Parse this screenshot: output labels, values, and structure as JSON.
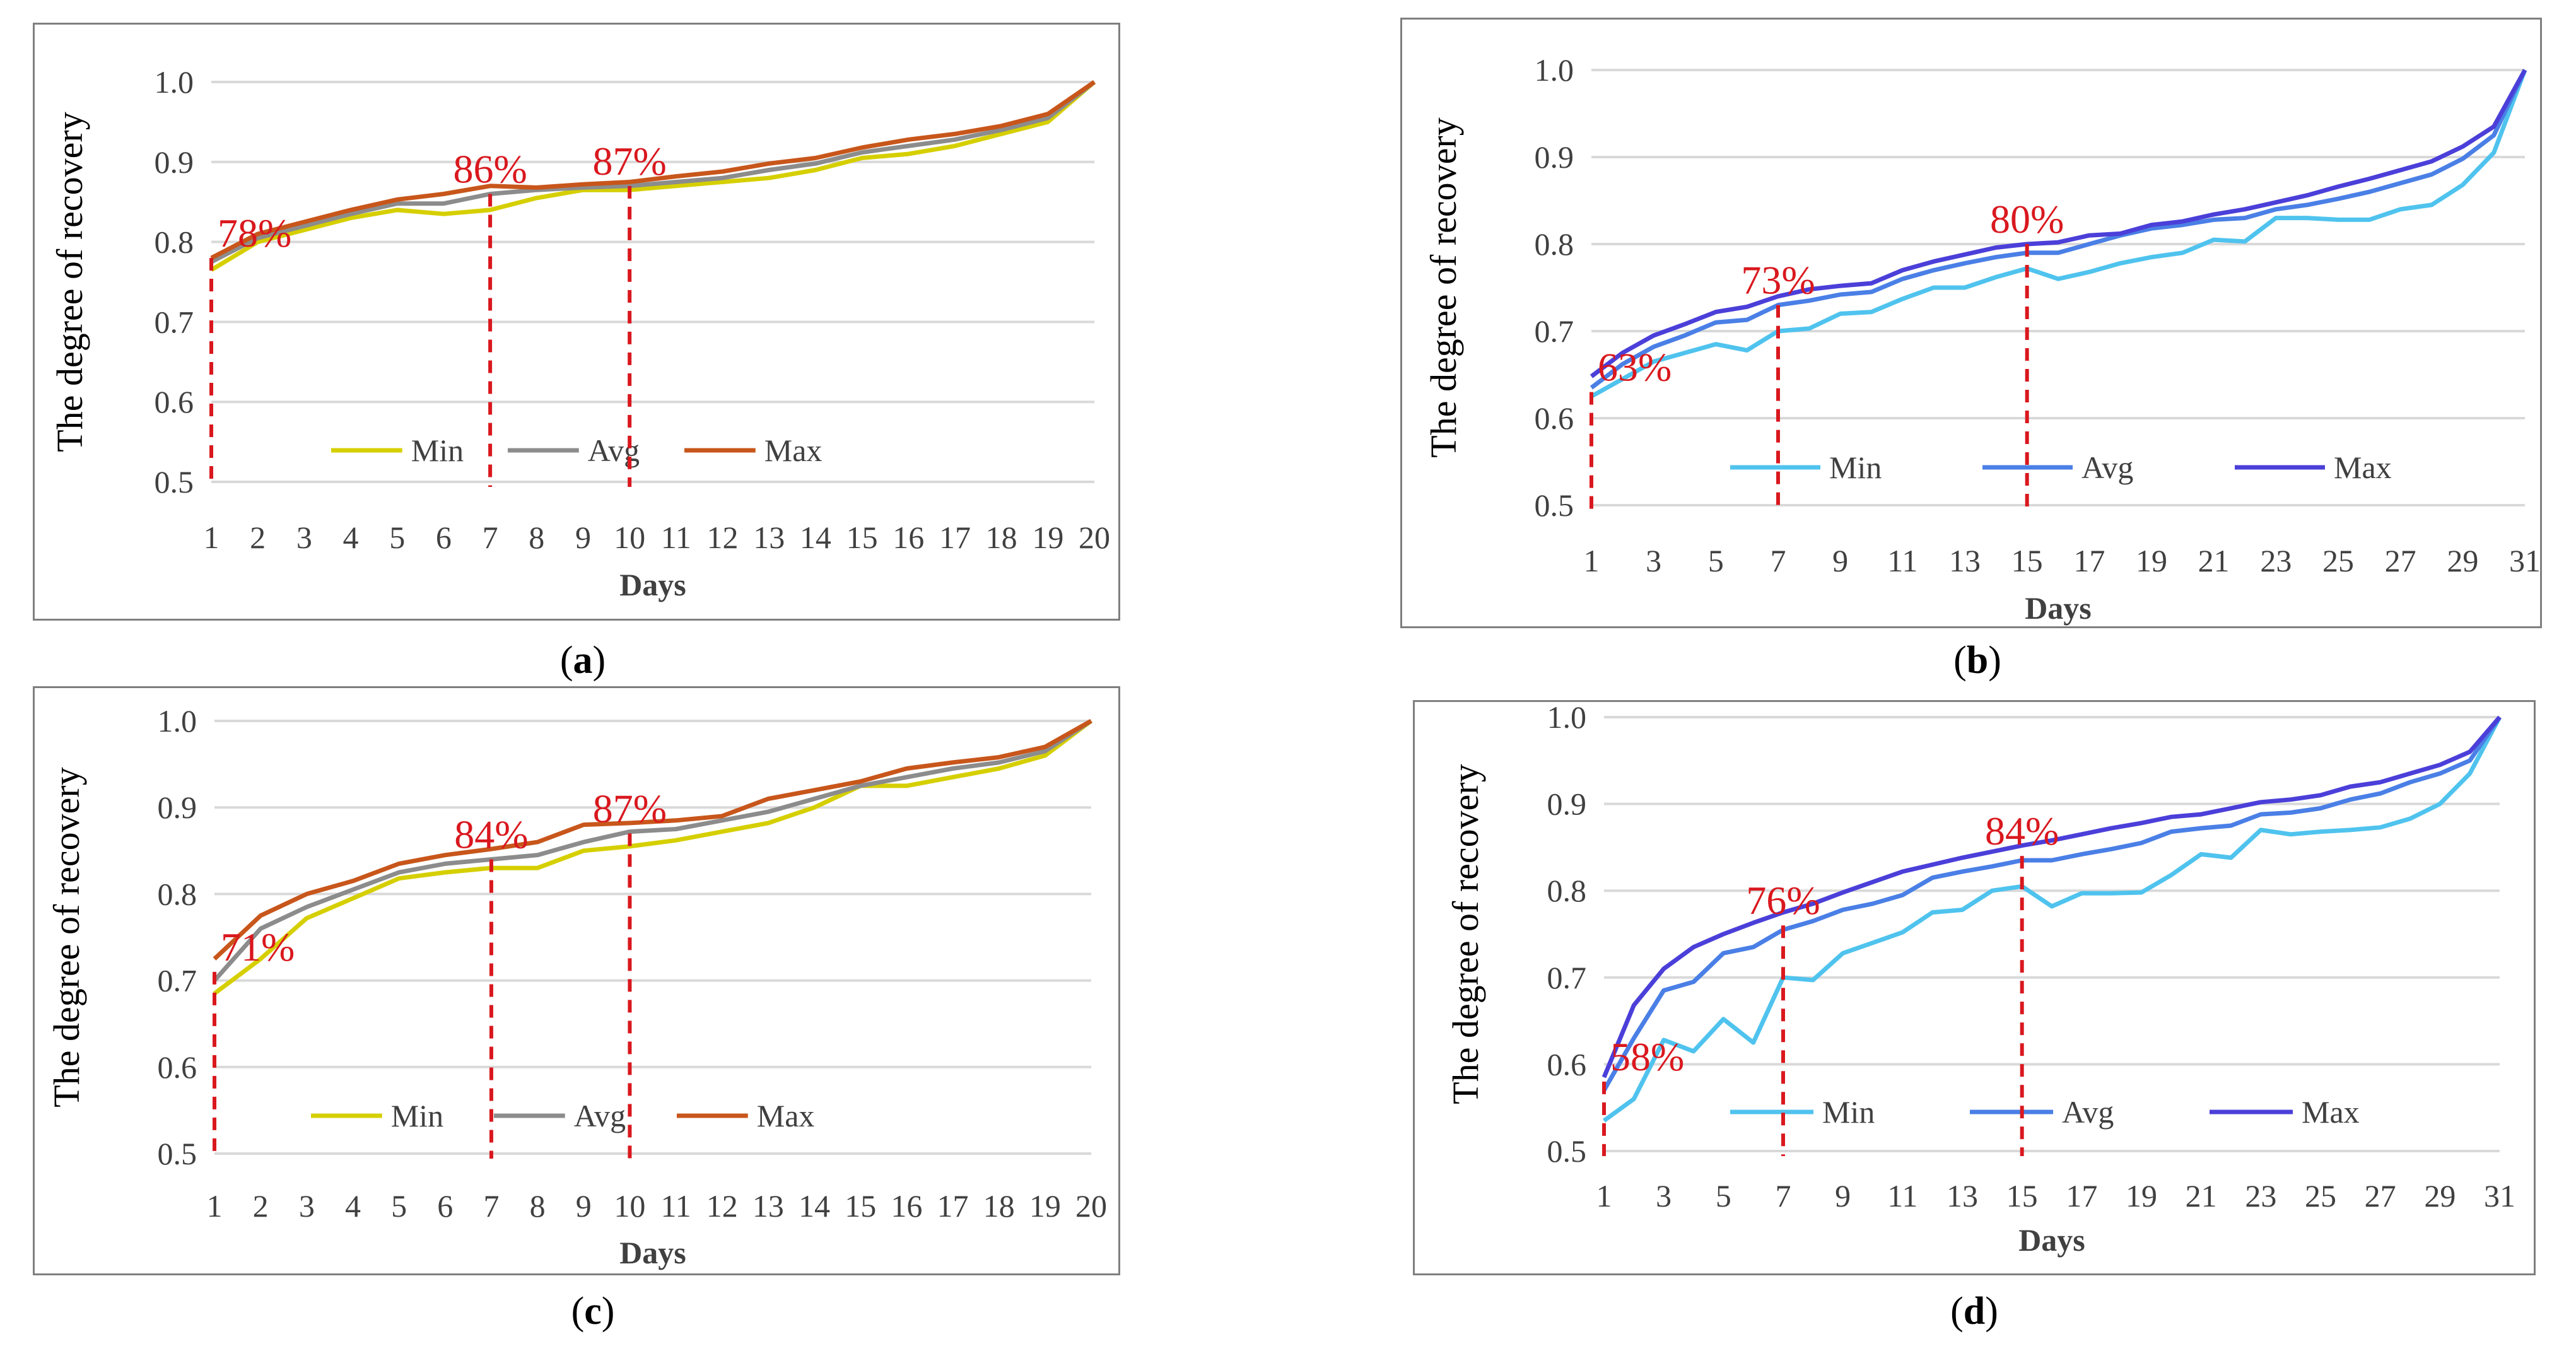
{
  "colors": {
    "annotation": "#d9181e",
    "grid": "#d9d9d9",
    "axis_text": "#404040",
    "warm": {
      "Min": "#d6cf00",
      "Avg": "#8c8c8c",
      "Max": "#c8561b"
    },
    "cool": {
      "Min": "#4fc3ee",
      "Avg": "#4a7fe6",
      "Max": "#4b3fd9"
    }
  },
  "captions": [
    {
      "open": "(",
      "letter": "a",
      "close": ")"
    },
    {
      "open": "(",
      "letter": "b",
      "close": ")"
    },
    {
      "open": "(",
      "letter": "c",
      "close": ")"
    },
    {
      "open": "(",
      "letter": "d",
      "close": ")"
    }
  ],
  "chart_data": [
    {
      "type": "line",
      "palette": "warm",
      "ylabel": "The degree of  recovery",
      "xlabel": "Days",
      "ylim": [
        0.5,
        1.0
      ],
      "yticks": [
        "0.5",
        "0.6",
        "0.7",
        "0.8",
        "0.9",
        "1.0"
      ],
      "x": [
        1,
        2,
        3,
        4,
        5,
        6,
        7,
        8,
        9,
        10,
        11,
        12,
        13,
        14,
        15,
        16,
        17,
        18,
        19,
        20
      ],
      "xtick_labels": [
        "1",
        "2",
        "3",
        "4",
        "5",
        "6",
        "7",
        "8",
        "9",
        "10",
        "11",
        "12",
        "13",
        "14",
        "15",
        "16",
        "17",
        "18",
        "19",
        "20"
      ],
      "grid": true,
      "legend_position": "bottom",
      "series": [
        {
          "name": "Min",
          "values": [
            0.765,
            0.8,
            0.815,
            0.83,
            0.84,
            0.835,
            0.84,
            0.855,
            0.865,
            0.865,
            0.87,
            0.875,
            0.88,
            0.89,
            0.905,
            0.91,
            0.92,
            0.935,
            0.95,
            1.0
          ]
        },
        {
          "name": "Avg",
          "values": [
            0.775,
            0.805,
            0.82,
            0.835,
            0.848,
            0.848,
            0.86,
            0.865,
            0.868,
            0.87,
            0.875,
            0.88,
            0.89,
            0.898,
            0.912,
            0.92,
            0.928,
            0.94,
            0.955,
            1.0
          ]
        },
        {
          "name": "Max",
          "values": [
            0.78,
            0.81,
            0.825,
            0.84,
            0.853,
            0.86,
            0.87,
            0.868,
            0.872,
            0.875,
            0.882,
            0.888,
            0.898,
            0.905,
            0.918,
            0.928,
            0.935,
            0.945,
            0.96,
            1.0
          ]
        }
      ],
      "markers": [
        {
          "x": 1,
          "y": 0.78,
          "label": "78%"
        },
        {
          "x": 7,
          "y": 0.86,
          "label": "86%"
        },
        {
          "x": 10,
          "y": 0.87,
          "label": "87%"
        }
      ]
    },
    {
      "type": "line",
      "palette": "cool",
      "ylabel": "The degree of  recovery",
      "xlabel": "Days",
      "ylim": [
        0.5,
        1.0
      ],
      "yticks": [
        "0.5",
        "0.6",
        "0.7",
        "0.8",
        "0.9",
        "1.0"
      ],
      "x": [
        1,
        2,
        3,
        4,
        5,
        6,
        7,
        8,
        9,
        10,
        11,
        12,
        13,
        14,
        15,
        16,
        17,
        18,
        19,
        20,
        21,
        22,
        23,
        24,
        25,
        26,
        27,
        28,
        29,
        30,
        31
      ],
      "xtick_labels": [
        "1",
        "",
        "3",
        "",
        "5",
        "",
        "7",
        "",
        "9",
        "",
        "11",
        "",
        "13",
        "",
        "15",
        "",
        "17",
        "",
        "19",
        "",
        "21",
        "",
        "23",
        "",
        "25",
        "",
        "27",
        "",
        "29",
        "",
        "31"
      ],
      "grid": true,
      "legend_position": "bottom",
      "series": [
        {
          "name": "Min",
          "values": [
            0.625,
            0.645,
            0.665,
            0.675,
            0.685,
            0.678,
            0.7,
            0.703,
            0.72,
            0.722,
            0.737,
            0.75,
            0.75,
            0.762,
            0.772,
            0.76,
            0.768,
            0.778,
            0.785,
            0.79,
            0.805,
            0.803,
            0.83,
            0.83,
            0.828,
            0.828,
            0.84,
            0.845,
            0.868,
            0.905,
            1.0
          ]
        },
        {
          "name": "Avg",
          "values": [
            0.635,
            0.662,
            0.682,
            0.695,
            0.71,
            0.713,
            0.73,
            0.735,
            0.742,
            0.745,
            0.76,
            0.77,
            0.778,
            0.785,
            0.79,
            0.79,
            0.8,
            0.81,
            0.818,
            0.822,
            0.828,
            0.83,
            0.84,
            0.845,
            0.852,
            0.86,
            0.87,
            0.88,
            0.898,
            0.925,
            1.0
          ]
        },
        {
          "name": "Max",
          "values": [
            0.648,
            0.675,
            0.695,
            0.708,
            0.722,
            0.728,
            0.74,
            0.748,
            0.752,
            0.755,
            0.77,
            0.78,
            0.788,
            0.796,
            0.8,
            0.802,
            0.81,
            0.812,
            0.822,
            0.826,
            0.834,
            0.84,
            0.848,
            0.856,
            0.866,
            0.875,
            0.885,
            0.895,
            0.912,
            0.935,
            1.0
          ]
        }
      ],
      "markers": [
        {
          "x": 1,
          "y": 0.63,
          "label": "63%"
        },
        {
          "x": 7,
          "y": 0.73,
          "label": "73%"
        },
        {
          "x": 15,
          "y": 0.8,
          "label": "80%"
        }
      ]
    },
    {
      "type": "line",
      "palette": "warm",
      "ylabel": "The degree of recovery",
      "xlabel": "Days",
      "ylim": [
        0.5,
        1.0
      ],
      "yticks": [
        "0.5",
        "0.6",
        "0.7",
        "0.8",
        "0.9",
        "1.0"
      ],
      "x": [
        1,
        2,
        3,
        4,
        5,
        6,
        7,
        8,
        9,
        10,
        11,
        12,
        13,
        14,
        15,
        16,
        17,
        18,
        19,
        20
      ],
      "xtick_labels": [
        "1",
        "2",
        "3",
        "4",
        "5",
        "6",
        "7",
        "8",
        "9",
        "10",
        "11",
        "12",
        "13",
        "14",
        "15",
        "16",
        "17",
        "18",
        "19",
        "20"
      ],
      "grid": true,
      "legend_position": "bottom",
      "series": [
        {
          "name": "Min",
          "values": [
            0.685,
            0.725,
            0.772,
            0.795,
            0.818,
            0.825,
            0.83,
            0.83,
            0.85,
            0.855,
            0.862,
            0.872,
            0.882,
            0.9,
            0.925,
            0.925,
            0.935,
            0.945,
            0.96,
            1.0
          ]
        },
        {
          "name": "Avg",
          "values": [
            0.7,
            0.76,
            0.785,
            0.805,
            0.825,
            0.835,
            0.84,
            0.845,
            0.86,
            0.872,
            0.875,
            0.885,
            0.895,
            0.91,
            0.925,
            0.935,
            0.945,
            0.952,
            0.965,
            1.0
          ]
        },
        {
          "name": "Max",
          "values": [
            0.725,
            0.775,
            0.8,
            0.815,
            0.835,
            0.845,
            0.852,
            0.86,
            0.88,
            0.882,
            0.885,
            0.89,
            0.91,
            0.92,
            0.93,
            0.945,
            0.952,
            0.958,
            0.97,
            1.0
          ]
        }
      ],
      "markers": [
        {
          "x": 1,
          "y": 0.71,
          "label": "71%"
        },
        {
          "x": 7,
          "y": 0.84,
          "label": "84%"
        },
        {
          "x": 10,
          "y": 0.87,
          "label": "87%"
        }
      ]
    },
    {
      "type": "line",
      "palette": "cool",
      "ylabel": "The degree of recovery",
      "xlabel": "Days",
      "ylim": [
        0.5,
        1.0
      ],
      "yticks": [
        "0.5",
        "0.6",
        "0.7",
        "0.8",
        "0.9",
        "1.0"
      ],
      "x": [
        1,
        2,
        3,
        4,
        5,
        6,
        7,
        8,
        9,
        10,
        11,
        12,
        13,
        14,
        15,
        16,
        17,
        18,
        19,
        20,
        21,
        22,
        23,
        24,
        25,
        26,
        27,
        28,
        29,
        30,
        31
      ],
      "xtick_labels": [
        "1",
        "",
        "3",
        "",
        "5",
        "",
        "7",
        "",
        "9",
        "",
        "11",
        "",
        "13",
        "",
        "15",
        "",
        "17",
        "",
        "19",
        "",
        "21",
        "",
        "23",
        "",
        "25",
        "",
        "27",
        "",
        "29",
        "",
        "31"
      ],
      "grid": true,
      "legend_position": "bottom",
      "series": [
        {
          "name": "Min",
          "values": [
            0.535,
            0.56,
            0.628,
            0.615,
            0.652,
            0.625,
            0.7,
            0.697,
            0.728,
            0.74,
            0.752,
            0.775,
            0.778,
            0.8,
            0.805,
            0.782,
            0.797,
            0.797,
            0.798,
            0.818,
            0.842,
            0.838,
            0.87,
            0.865,
            0.868,
            0.87,
            0.873,
            0.883,
            0.9,
            0.935,
            1.0
          ]
        },
        {
          "name": "Avg",
          "values": [
            0.57,
            0.63,
            0.685,
            0.695,
            0.728,
            0.735,
            0.755,
            0.765,
            0.778,
            0.785,
            0.795,
            0.815,
            0.822,
            0.828,
            0.835,
            0.835,
            0.842,
            0.848,
            0.855,
            0.868,
            0.872,
            0.875,
            0.888,
            0.89,
            0.895,
            0.905,
            0.912,
            0.925,
            0.935,
            0.95,
            1.0
          ]
        },
        {
          "name": "Max",
          "values": [
            0.585,
            0.668,
            0.71,
            0.735,
            0.75,
            0.763,
            0.775,
            0.785,
            0.798,
            0.81,
            0.822,
            0.83,
            0.838,
            0.845,
            0.852,
            0.858,
            0.865,
            0.872,
            0.878,
            0.885,
            0.888,
            0.895,
            0.902,
            0.905,
            0.91,
            0.92,
            0.925,
            0.935,
            0.945,
            0.96,
            1.0
          ]
        }
      ],
      "markers": [
        {
          "x": 1,
          "y": 0.58,
          "label": "58%"
        },
        {
          "x": 7,
          "y": 0.76,
          "label": "76%"
        },
        {
          "x": 15,
          "y": 0.84,
          "label": "84%"
        }
      ]
    }
  ]
}
